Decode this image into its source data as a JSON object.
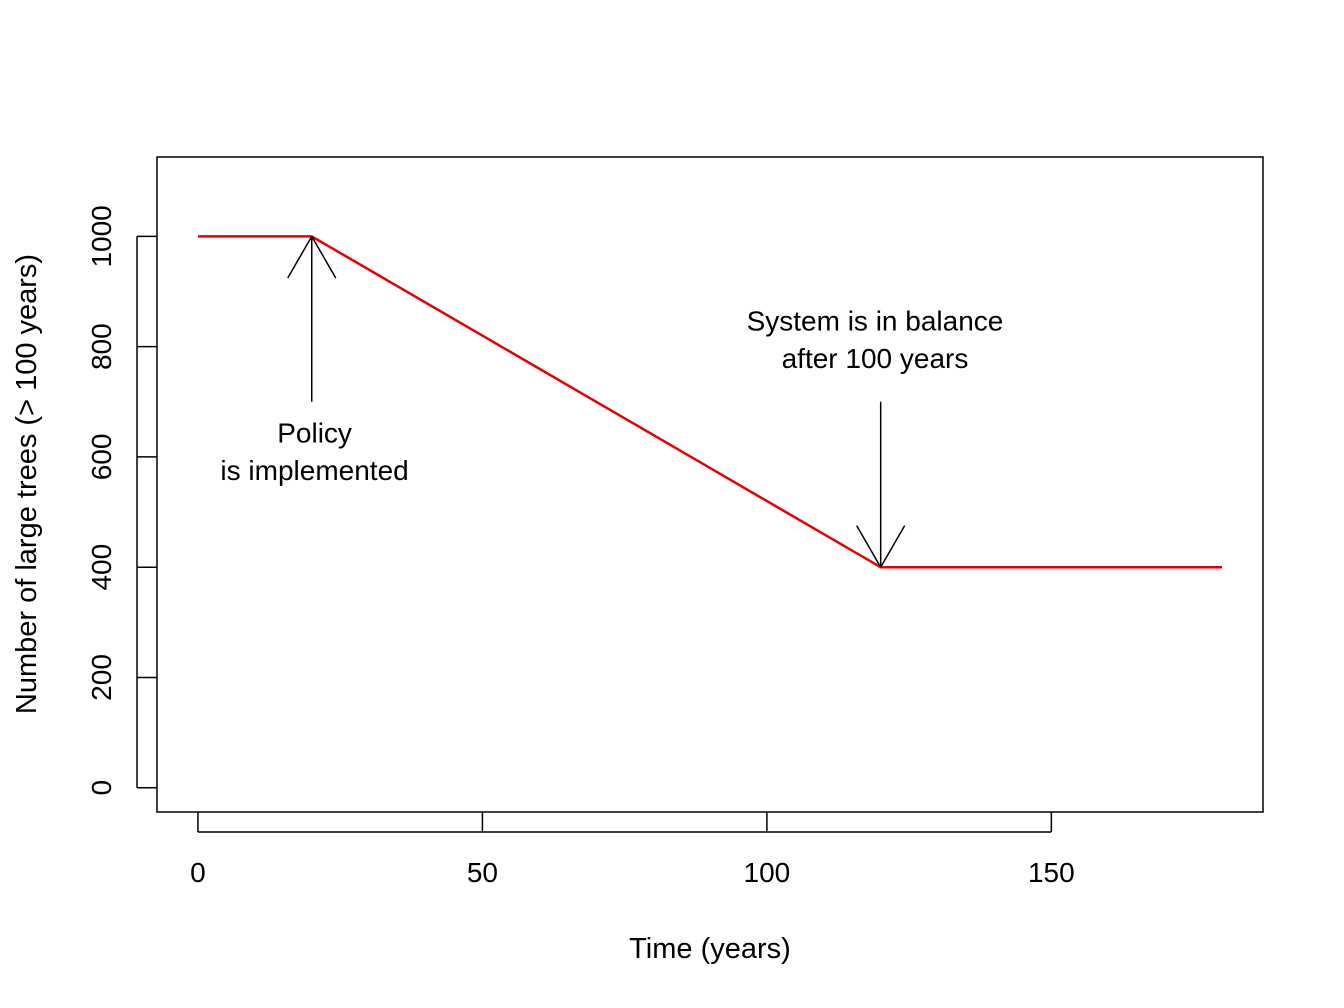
{
  "chart_data": {
    "type": "line",
    "title": "",
    "xlabel": "Time (years)",
    "ylabel": "Number of large trees (> 100 years)",
    "xlim": [
      -7.2,
      187.2
    ],
    "ylim": [
      -44,
      1144
    ],
    "x_ticks": [
      0,
      50,
      100,
      150
    ],
    "y_ticks": [
      0,
      200,
      400,
      600,
      800,
      1000
    ],
    "grid": false,
    "legend": "none",
    "series": [
      {
        "color": "#e60000",
        "points": [
          {
            "x": 0,
            "y": 1000
          },
          {
            "x": 20,
            "y": 1000
          },
          {
            "x": 120,
            "y": 400
          },
          {
            "x": 180,
            "y": 400
          }
        ]
      }
    ],
    "annotations": [
      {
        "id": "policy",
        "lines": [
          "Policy",
          "is implemented"
        ],
        "text_x": 20.5,
        "text_y": [
          626,
          558
        ],
        "arrow_from": {
          "x": 20,
          "y": 700
        },
        "arrow_to": {
          "x": 20,
          "y": 1000
        }
      },
      {
        "id": "balance",
        "lines": [
          "System is in balance",
          "after 100 years"
        ],
        "text_x": 119,
        "text_y": [
          829,
          761
        ],
        "arrow_from": {
          "x": 120,
          "y": 700
        },
        "arrow_to": {
          "x": 120,
          "y": 400
        }
      }
    ]
  }
}
